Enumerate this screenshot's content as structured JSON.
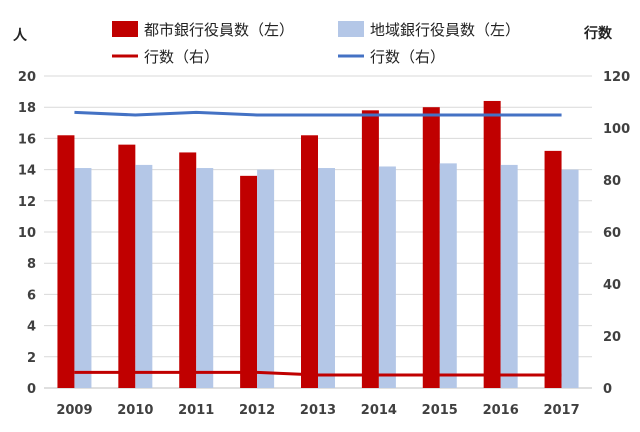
{
  "chart_data": {
    "type": "bar+line",
    "categories": [
      "2009",
      "2010",
      "2011",
      "2012",
      "2013",
      "2014",
      "2015",
      "2016",
      "2017"
    ],
    "bar_series": [
      {
        "name": "都市銀行役員数（左）",
        "color": "#c00000",
        "axis": "left",
        "values": [
          16.2,
          15.6,
          15.1,
          13.6,
          16.2,
          17.8,
          18.0,
          18.4,
          15.2
        ]
      },
      {
        "name": "地域銀行役員数（左）",
        "color": "#b4c7e7",
        "axis": "left",
        "values": [
          14.1,
          14.3,
          14.1,
          14.0,
          14.1,
          14.2,
          14.4,
          14.3,
          14.0
        ]
      }
    ],
    "line_series": [
      {
        "name": "行数（右）",
        "color": "#c00000",
        "axis": "right",
        "values": [
          6,
          6,
          6,
          6,
          5,
          5,
          5,
          5,
          5
        ]
      },
      {
        "name": "行数（右）",
        "color": "#4472c4",
        "axis": "right",
        "values": [
          106,
          105,
          106,
          105,
          105,
          105,
          105,
          105,
          105
        ]
      }
    ],
    "y_left": {
      "label": "人",
      "min": 0,
      "max": 20,
      "step": 2
    },
    "y_right": {
      "label": "行数",
      "min": 0,
      "max": 120,
      "step": 20
    },
    "grid": true,
    "legend_position": "top"
  }
}
